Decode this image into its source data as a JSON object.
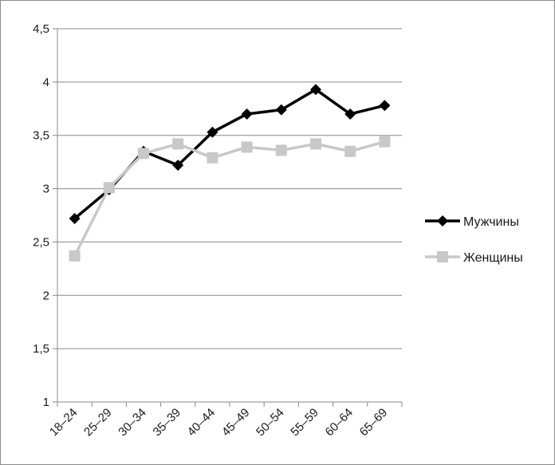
{
  "chart_data": {
    "type": "line",
    "categories": [
      "18–24",
      "25–29",
      "30–34",
      "35–39",
      "40–44",
      "45–49",
      "50–54",
      "55–59",
      "60–64",
      "65–69"
    ],
    "ylim": [
      1,
      4.5
    ],
    "yticks": [
      1,
      1.5,
      2,
      2.5,
      3,
      3.5,
      4,
      4.5
    ],
    "ytick_labels": [
      "1",
      "1,5",
      "2",
      "2,5",
      "3",
      "3,5",
      "4",
      "4,5"
    ],
    "grid": true,
    "legend_position": "right",
    "series": [
      {
        "name": "Мужчины",
        "values": [
          2.72,
          2.99,
          3.35,
          3.22,
          3.53,
          3.7,
          3.74,
          3.93,
          3.7,
          3.78
        ],
        "color": "#000000",
        "marker": "diamond"
      },
      {
        "name": "Женщины",
        "values": [
          2.37,
          3.01,
          3.33,
          3.42,
          3.29,
          3.39,
          3.36,
          3.42,
          3.35,
          3.44
        ],
        "color": "#c8c8c8",
        "marker": "square"
      }
    ]
  }
}
